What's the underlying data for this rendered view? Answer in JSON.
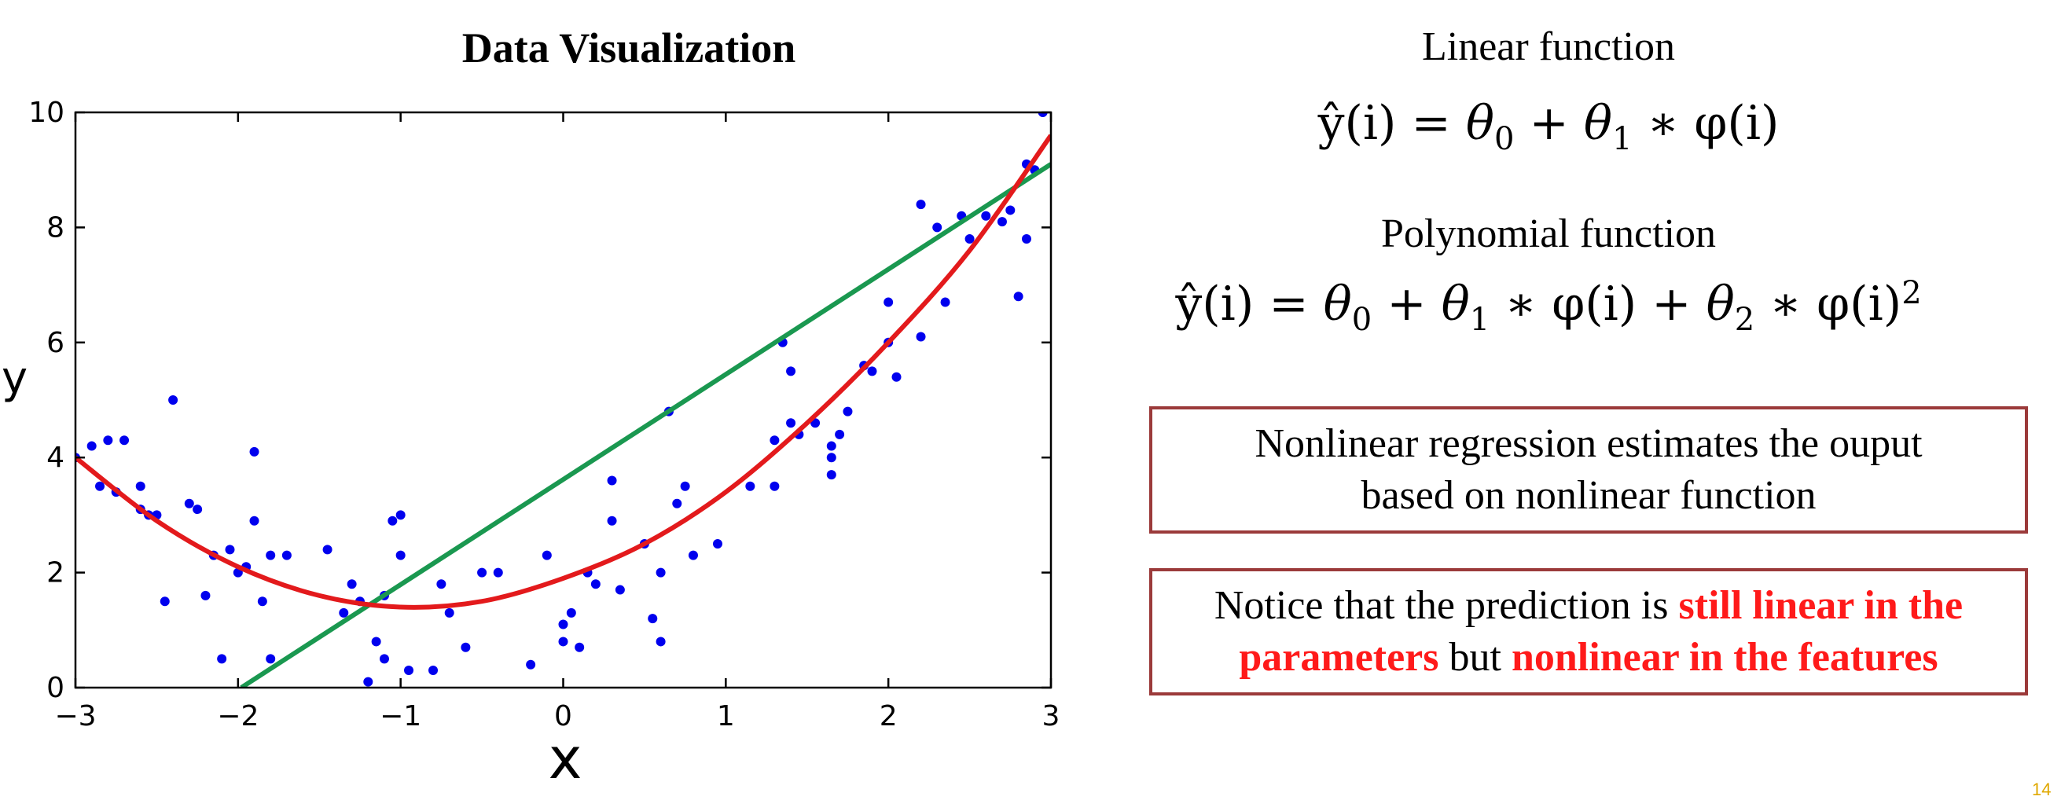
{
  "title": "Data Visualization",
  "linear": {
    "heading": "Linear function",
    "formula": {
      "yhat": "ŷ(i)",
      "eq": " =  ",
      "theta0": "θ",
      "sub0": "0",
      "plus1": " + ",
      "theta1": "θ",
      "sub1": "1",
      "star1": " ∗ ",
      "phi": "φ(i)"
    }
  },
  "polynomial": {
    "heading": "Polynomial function",
    "formula": {
      "yhat": "ŷ(i)",
      "eq": " =  ",
      "theta0": "θ",
      "sub0": "0",
      "plus1": " + ",
      "theta1": "θ",
      "sub1": "1",
      "star1": " ∗ ",
      "phi1": "φ(i)",
      "plus2": " + ",
      "theta2": "θ",
      "sub2": "2",
      "star2": " ∗ ",
      "phi2": "φ(i)",
      "sup2": "2"
    }
  },
  "notes": {
    "nonlinear_line1": "Nonlinear regression estimates the ouput",
    "nonlinear_line2": "based on nonlinear function",
    "notice_part1": "Notice that the prediction is ",
    "notice_red1a": "still linear in the",
    "notice_red1b": "parameters",
    "notice_part2": " but ",
    "notice_red2": "nonlinear in the features"
  },
  "page_number": "14",
  "colors": {
    "points": "#0000ee",
    "linear": "#1a9850",
    "polynomial": "#e31a1c",
    "box_border": "#9b3a3a",
    "highlight": "#ff1a1a"
  },
  "chart_data": {
    "type": "scatter",
    "title": "",
    "xlabel": "x",
    "ylabel": "y",
    "xlim": [
      -3,
      3
    ],
    "ylim": [
      0,
      10
    ],
    "xticks": [
      "−3",
      "−2",
      "−1",
      "0",
      "1",
      "2",
      "3"
    ],
    "yticks": [
      "0",
      "2",
      "4",
      "6",
      "8",
      "10"
    ],
    "grid": false,
    "points": [
      [
        -3.0,
        4.0
      ],
      [
        -2.9,
        4.2
      ],
      [
        -2.8,
        4.3
      ],
      [
        -2.7,
        4.3
      ],
      [
        -2.75,
        3.4
      ],
      [
        -2.85,
        3.5
      ],
      [
        -2.6,
        3.5
      ],
      [
        -2.6,
        3.1
      ],
      [
        -2.55,
        3.0
      ],
      [
        -2.5,
        3.0
      ],
      [
        -2.45,
        1.5
      ],
      [
        -2.4,
        5.0
      ],
      [
        -2.3,
        3.2
      ],
      [
        -2.25,
        3.1
      ],
      [
        -2.2,
        1.6
      ],
      [
        -2.15,
        2.3
      ],
      [
        -2.05,
        2.4
      ],
      [
        -2.1,
        0.5
      ],
      [
        -2.0,
        2.0
      ],
      [
        -1.95,
        2.1
      ],
      [
        -1.9,
        4.1
      ],
      [
        -1.9,
        2.9
      ],
      [
        -1.85,
        1.5
      ],
      [
        -1.8,
        2.3
      ],
      [
        -1.8,
        0.5
      ],
      [
        -1.7,
        2.3
      ],
      [
        -1.45,
        2.4
      ],
      [
        -1.35,
        1.3
      ],
      [
        -1.3,
        1.8
      ],
      [
        -1.25,
        1.5
      ],
      [
        -1.2,
        0.1
      ],
      [
        -1.15,
        0.8
      ],
      [
        -1.1,
        0.5
      ],
      [
        -1.1,
        1.6
      ],
      [
        -1.05,
        2.9
      ],
      [
        -1.0,
        3.0
      ],
      [
        -1.0,
        2.3
      ],
      [
        -0.95,
        0.3
      ],
      [
        -0.8,
        0.3
      ],
      [
        -0.75,
        1.8
      ],
      [
        -0.7,
        1.3
      ],
      [
        -0.6,
        0.7
      ],
      [
        -0.5,
        2.0
      ],
      [
        -0.4,
        2.0
      ],
      [
        -0.2,
        0.4
      ],
      [
        -0.1,
        2.3
      ],
      [
        0.0,
        1.1
      ],
      [
        0.0,
        0.8
      ],
      [
        0.05,
        1.3
      ],
      [
        0.1,
        0.7
      ],
      [
        0.15,
        2.0
      ],
      [
        0.2,
        1.8
      ],
      [
        0.3,
        3.6
      ],
      [
        0.3,
        2.9
      ],
      [
        0.35,
        1.7
      ],
      [
        0.5,
        2.5
      ],
      [
        0.55,
        1.2
      ],
      [
        0.6,
        0.8
      ],
      [
        0.6,
        2.0
      ],
      [
        0.65,
        4.8
      ],
      [
        0.7,
        3.2
      ],
      [
        0.75,
        3.5
      ],
      [
        0.8,
        2.3
      ],
      [
        0.95,
        2.5
      ],
      [
        1.15,
        3.5
      ],
      [
        1.3,
        4.3
      ],
      [
        1.3,
        3.5
      ],
      [
        1.35,
        6.0
      ],
      [
        1.4,
        5.5
      ],
      [
        1.4,
        4.6
      ],
      [
        1.45,
        4.4
      ],
      [
        1.55,
        4.6
      ],
      [
        1.65,
        3.7
      ],
      [
        1.65,
        4.0
      ],
      [
        1.65,
        4.2
      ],
      [
        1.7,
        4.4
      ],
      [
        1.75,
        4.8
      ],
      [
        1.85,
        5.6
      ],
      [
        1.9,
        5.5
      ],
      [
        2.0,
        6.0
      ],
      [
        2.0,
        6.7
      ],
      [
        2.05,
        5.4
      ],
      [
        2.2,
        8.4
      ],
      [
        2.2,
        6.1
      ],
      [
        2.3,
        8.0
      ],
      [
        2.35,
        6.7
      ],
      [
        2.45,
        8.2
      ],
      [
        2.5,
        7.8
      ],
      [
        2.6,
        8.2
      ],
      [
        2.7,
        8.1
      ],
      [
        2.75,
        8.3
      ],
      [
        2.8,
        6.8
      ],
      [
        2.85,
        7.8
      ],
      [
        2.85,
        9.1
      ],
      [
        2.9,
        9.0
      ],
      [
        2.95,
        10.0
      ]
    ],
    "linear_fit": {
      "x": [
        -1.98,
        3.0
      ],
      "y": [
        0.0,
        9.1
      ]
    },
    "polynomial_fit": {
      "x": [
        -3.0,
        -2.5,
        -2.0,
        -1.5,
        -1.0,
        -0.5,
        0.0,
        0.5,
        1.0,
        1.5,
        2.0,
        2.5,
        3.0
      ],
      "y": [
        4.0,
        2.9,
        2.1,
        1.6,
        1.4,
        1.5,
        1.9,
        2.5,
        3.4,
        4.6,
        6.0,
        7.6,
        9.6
      ]
    }
  }
}
